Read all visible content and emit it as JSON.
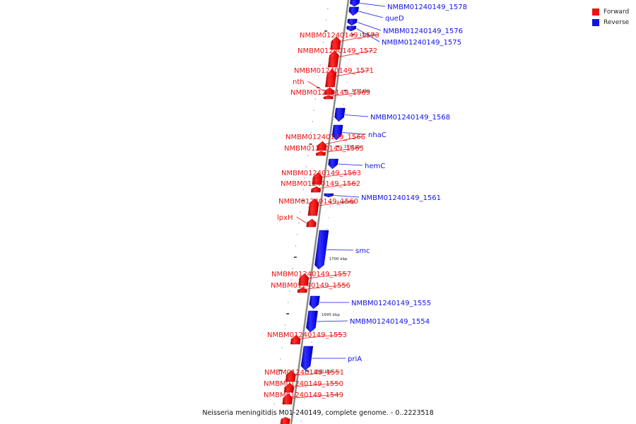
{
  "caption": "Neisseria meningitidis M01-240149, complete genome. - 0..2223518",
  "legend": [
    {
      "label": "Forward",
      "color": "#ee1111"
    },
    {
      "label": "Reverse",
      "color": "#1111ee"
    }
  ],
  "colors": {
    "forward": "#ee1111",
    "reverse": "#1111ee",
    "axis": "#888888"
  },
  "scale_ticks": [
    {
      "label": "1720 kbp",
      "kbp": 1720
    },
    {
      "label": "1715 kbp",
      "kbp": 1715
    },
    {
      "label": "1710 kbp",
      "kbp": 1710
    },
    {
      "label": "1705 kbp",
      "kbp": 1705
    },
    {
      "label": "1700 kbp",
      "kbp": 1700
    },
    {
      "label": "1695 kbp",
      "kbp": 1695
    },
    {
      "label": "1690 kbp",
      "kbp": 1690
    }
  ],
  "genes": [
    {
      "name": "NMBM01240149_1578",
      "strand": "reverse"
    },
    {
      "name": "queD",
      "strand": "reverse"
    },
    {
      "name": "NMBM01240149_1576",
      "strand": "reverse"
    },
    {
      "name": "NMBM01240149_1575",
      "strand": "reverse"
    },
    {
      "name": "NMBM01240149_1573",
      "strand": "forward"
    },
    {
      "name": "NMBM01240149_1572",
      "strand": "forward"
    },
    {
      "name": "NMBM01240149_1571",
      "strand": "forward"
    },
    {
      "name": "nth",
      "strand": "forward"
    },
    {
      "name": "NMBM01240149_1569",
      "strand": "forward"
    },
    {
      "name": "NMBM01240149_1568",
      "strand": "reverse"
    },
    {
      "name": "nhaC",
      "strand": "reverse"
    },
    {
      "name": "NMBM01240149_1566",
      "strand": "forward"
    },
    {
      "name": "NMBM01240149_1565",
      "strand": "forward"
    },
    {
      "name": "hemC",
      "strand": "reverse"
    },
    {
      "name": "NMBM01240149_1563",
      "strand": "forward"
    },
    {
      "name": "NMBM01240149_1562",
      "strand": "forward"
    },
    {
      "name": "NMBM01240149_1561",
      "strand": "reverse"
    },
    {
      "name": "NMBM01240149_1560",
      "strand": "forward"
    },
    {
      "name": "lpxH",
      "strand": "forward"
    },
    {
      "name": "smc",
      "strand": "reverse"
    },
    {
      "name": "NMBM01240149_1557",
      "strand": "forward"
    },
    {
      "name": "NMBM01240149_1556",
      "strand": "forward"
    },
    {
      "name": "NMBM01240149_1555",
      "strand": "reverse"
    },
    {
      "name": "NMBM01240149_1554",
      "strand": "reverse"
    },
    {
      "name": "NMBM01240149_1553",
      "strand": "forward"
    },
    {
      "name": "priA",
      "strand": "reverse"
    },
    {
      "name": "NMBM01240149_1551",
      "strand": "forward"
    },
    {
      "name": "NMBM01240149_1550",
      "strand": "forward"
    },
    {
      "name": "NMBM01240149_1549",
      "strand": "forward"
    }
  ]
}
